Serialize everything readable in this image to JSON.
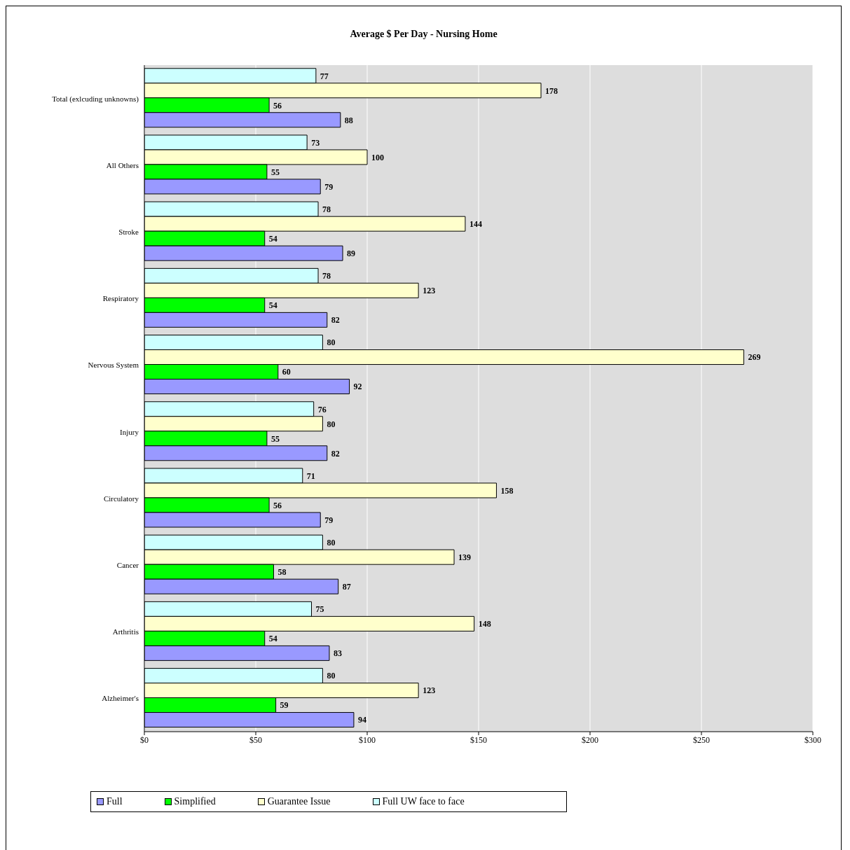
{
  "chart_data": {
    "type": "bar",
    "orientation": "horizontal",
    "title": "Average $ Per Day - Nursing Home",
    "categories": [
      "Total (exlcuding unknowns)",
      "All Others",
      "Stroke",
      "Respiratory",
      "Nervous System",
      "Injury",
      "Circulatory",
      "Cancer",
      "Arthritis",
      "Alzheimer's"
    ],
    "series": [
      {
        "name": "Full",
        "color": "#9999ff",
        "values": [
          88,
          79,
          89,
          82,
          92,
          82,
          79,
          87,
          83,
          94
        ]
      },
      {
        "name": "Simplified",
        "color": "#00ff00",
        "values": [
          56,
          55,
          54,
          54,
          60,
          55,
          56,
          58,
          54,
          59
        ]
      },
      {
        "name": "Guarantee Issue",
        "color": "#ffffcc",
        "values": [
          178,
          100,
          144,
          123,
          269,
          80,
          158,
          139,
          148,
          123
        ]
      },
      {
        "name": "Full UW face to face",
        "color": "#ccffff",
        "values": [
          77,
          73,
          78,
          78,
          80,
          76,
          71,
          80,
          75,
          80
        ]
      }
    ],
    "xlim": [
      0,
      300
    ],
    "xticks": [
      {
        "value": 0,
        "label": "$0"
      },
      {
        "value": 50,
        "label": "$50"
      },
      {
        "value": 100,
        "label": "$100"
      },
      {
        "value": 150,
        "label": "$150"
      },
      {
        "value": 200,
        "label": "$200"
      },
      {
        "value": 250,
        "label": "$250"
      },
      {
        "value": 300,
        "label": "$300"
      }
    ],
    "grid": "x",
    "legend": "bottom",
    "data_labels": true
  }
}
